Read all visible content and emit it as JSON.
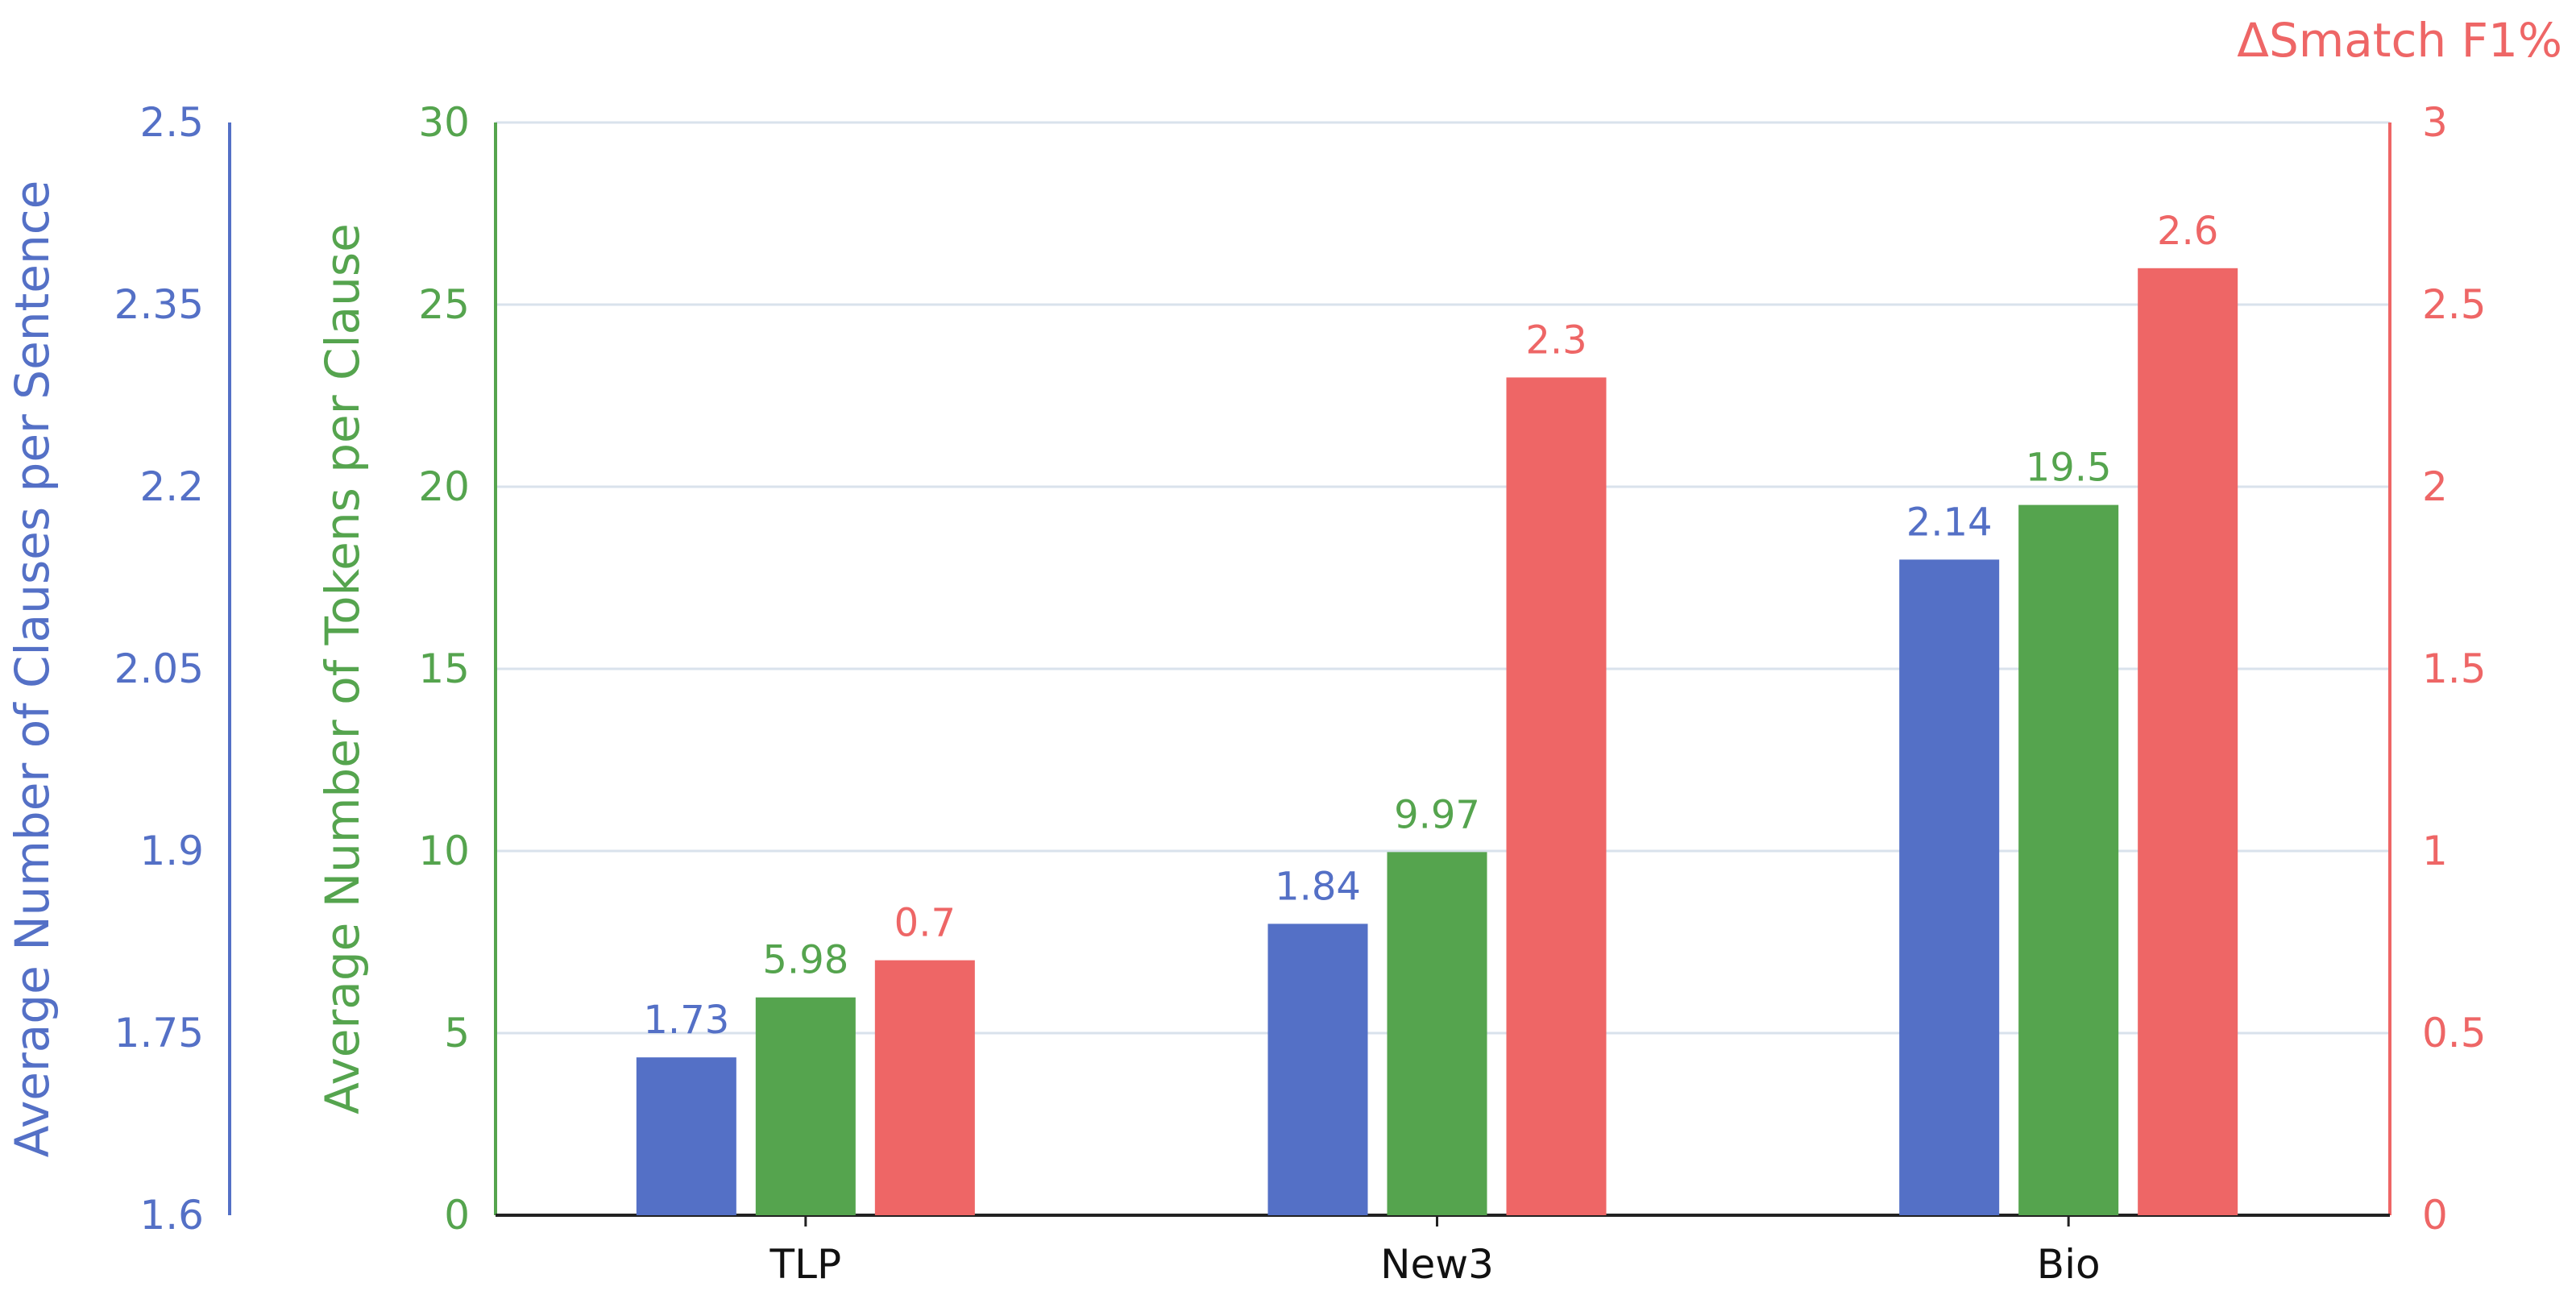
{
  "colors": {
    "clauses": "#5470c6",
    "tokens": "#55a44e",
    "smatch": "#ee6666",
    "grid": "#d9e2ec",
    "axis": "#222222"
  },
  "chart_data": {
    "type": "bar",
    "categories": [
      "TLP",
      "New3",
      "Bio"
    ],
    "grid": true,
    "axes": [
      {
        "key": "clauses",
        "side": "far-left",
        "label": "Average Number of Clauses per Sentence",
        "ylim": [
          1.6,
          2.5
        ],
        "ticks": [
          "1.6",
          "1.75",
          "1.9",
          "2.05",
          "2.2",
          "2.35",
          "2.5"
        ]
      },
      {
        "key": "tokens",
        "side": "left",
        "label": "Average Number of Tokens per Clause",
        "ylim": [
          0,
          30
        ],
        "ticks": [
          "0",
          "5",
          "10",
          "15",
          "20",
          "25",
          "30"
        ]
      },
      {
        "key": "smatch",
        "side": "right",
        "label": "ΔSmatch F1%",
        "ylim": [
          0,
          3
        ],
        "ticks": [
          "0",
          "0.5",
          "1",
          "1.5",
          "2",
          "2.5",
          "3"
        ]
      }
    ],
    "series": [
      {
        "axis": "clauses",
        "values": [
          1.73,
          1.84,
          2.14
        ],
        "labels": [
          "1.73",
          "1.84",
          "2.14"
        ]
      },
      {
        "axis": "tokens",
        "values": [
          5.98,
          9.97,
          19.5
        ],
        "labels": [
          "5.98",
          "9.97",
          "19.5"
        ]
      },
      {
        "axis": "smatch",
        "values": [
          0.7,
          2.3,
          2.6
        ],
        "labels": [
          "0.7",
          "2.3",
          "2.6"
        ]
      }
    ]
  }
}
